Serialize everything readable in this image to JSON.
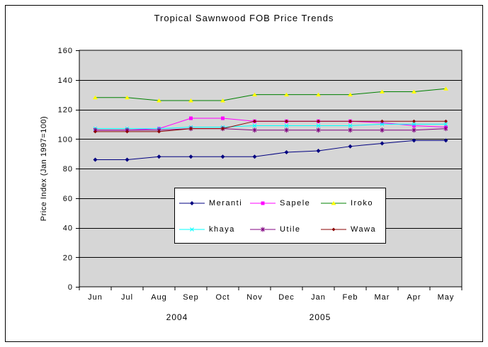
{
  "chart_data": {
    "type": "line",
    "title": "Tropical Sawnwood FOB Price Trends",
    "ylabel": "Price Index (Jan 1997=100)",
    "xlabel": "",
    "categories": [
      "Jun",
      "Jul",
      "Aug",
      "Sep",
      "Oct",
      "Nov",
      "Dec",
      "Jan",
      "Feb",
      "Mar",
      "Apr",
      "May"
    ],
    "year_labels": [
      "2004",
      "2005"
    ],
    "y_axis": {
      "min": 0,
      "max": 160,
      "tick_step": 20,
      "ticks": [
        "0",
        "20",
        "40",
        "60",
        "80",
        "100",
        "120",
        "140",
        "160"
      ]
    },
    "grid": "horizontal-black",
    "plot_bg": "#D6D6D6",
    "axis_color": "#000000",
    "legend_position": "inside-bottom-center",
    "series": [
      {
        "name": "Meranti",
        "color": "#000080",
        "marker": "diamond",
        "marker_color": "#000080",
        "values": [
          86,
          86,
          88,
          88,
          88,
          88,
          91,
          92,
          95,
          97,
          99,
          99
        ]
      },
      {
        "name": "Sapele",
        "color": "#FF00FF",
        "marker": "square",
        "marker_color": "#FF00FF",
        "values": [
          106,
          106,
          107,
          114,
          114,
          112,
          112,
          112,
          112,
          111,
          109,
          108
        ]
      },
      {
        "name": "Iroko",
        "color": "#008000",
        "marker": "triangle",
        "marker_color": "#FFFF00",
        "values": [
          128,
          128,
          126,
          126,
          126,
          130,
          130,
          130,
          130,
          132,
          132,
          134
        ]
      },
      {
        "name": "khaya",
        "color": "#00FFFF",
        "marker": "x",
        "marker_color": "#00FFFF",
        "values": [
          107,
          107,
          107,
          108,
          108,
          109,
          109,
          109,
          109,
          110,
          110,
          110
        ]
      },
      {
        "name": "Utile",
        "color": "#800080",
        "marker": "asterisk",
        "marker_color": "#800080",
        "values": [
          106,
          106,
          106,
          107,
          107,
          106,
          106,
          106,
          106,
          106,
          106,
          107
        ]
      },
      {
        "name": "Wawa",
        "color": "#8B0000",
        "marker": "diamond-small",
        "marker_color": "#8B0000",
        "values": [
          105,
          105,
          105,
          107,
          107,
          112,
          112,
          112,
          112,
          112,
          112,
          112
        ]
      }
    ]
  }
}
